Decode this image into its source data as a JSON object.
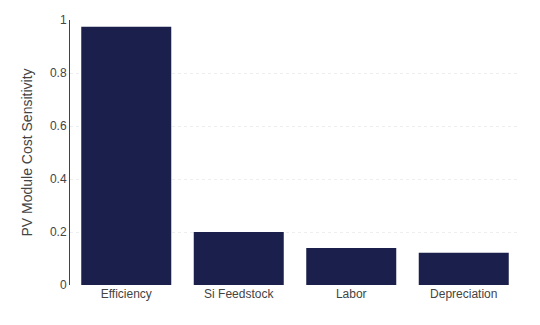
{
  "chart_data": {
    "type": "bar",
    "categories": [
      "Efficiency",
      "Si Feedstock",
      "Labor",
      "Depreciation"
    ],
    "values": [
      0.975,
      0.2,
      0.14,
      0.122
    ],
    "color": "#1a1f4b",
    "ylabel": "PV Module Cost Sensitivity",
    "ylim": [
      0,
      1.0
    ],
    "yticks": [
      0,
      0.2,
      0.4,
      0.6,
      0.8,
      1
    ],
    "grid": true
  }
}
